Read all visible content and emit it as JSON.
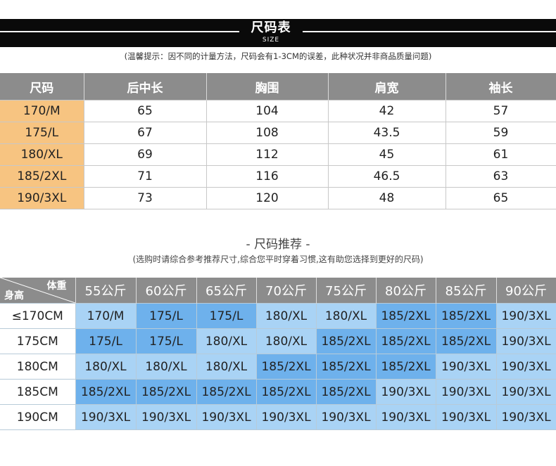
{
  "header": {
    "title": "尺码表",
    "subtitle": "SIZE",
    "notice": "(温馨提示：因不同的计量方法，尺码会有1-3CM的误差，此种状况并非商品质量问题)"
  },
  "size_table": {
    "headers": [
      "尺码",
      "后中长",
      "胸围",
      "肩宽",
      "袖长"
    ],
    "rows": [
      [
        "170/M",
        "65",
        "104",
        "42",
        "57"
      ],
      [
        "175/L",
        "67",
        "108",
        "43.5",
        "59"
      ],
      [
        "180/XL",
        "69",
        "112",
        "45",
        "61"
      ],
      [
        "185/2XL",
        "71",
        "116",
        "46.5",
        "63"
      ],
      [
        "190/3XL",
        "73",
        "120",
        "48",
        "65"
      ]
    ]
  },
  "recommendation": {
    "title": "- 尺码推荐 -",
    "note": "(选购时请综合参考推荐尺寸,综合您平时穿着习惯,这有助您选择到更好的尺码)",
    "corner_top": "体重",
    "corner_bottom": "身高",
    "weights": [
      "55公斤",
      "60公斤",
      "65公斤",
      "70公斤",
      "75公斤",
      "80公斤",
      "85公斤",
      "90公斤"
    ],
    "rows": [
      {
        "height": "≤170CM",
        "cells": [
          "170/M",
          "175/L",
          "175/L",
          "180/XL",
          "180/XL",
          "185/2XL",
          "185/2XL",
          "190/3XL"
        ],
        "shade": [
          "light",
          "dark",
          "dark",
          "light",
          "light",
          "dark",
          "dark",
          "light"
        ]
      },
      {
        "height": "175CM",
        "cells": [
          "175/L",
          "175/L",
          "180/XL",
          "180/XL",
          "185/2XL",
          "185/2XL",
          "185/2XL",
          "190/3XL"
        ],
        "shade": [
          "dark",
          "dark",
          "light",
          "light",
          "dark",
          "dark",
          "dark",
          "light"
        ]
      },
      {
        "height": "180CM",
        "cells": [
          "180/XL",
          "180/XL",
          "180/XL",
          "185/2XL",
          "185/2XL",
          "185/2XL",
          "190/3XL",
          "190/3XL"
        ],
        "shade": [
          "light",
          "light",
          "light",
          "dark",
          "dark",
          "dark",
          "light",
          "light"
        ]
      },
      {
        "height": "185CM",
        "cells": [
          "185/2XL",
          "185/2XL",
          "185/2XL",
          "185/2XL",
          "185/2XL",
          "190/3XL",
          "190/3XL",
          "190/3XL"
        ],
        "shade": [
          "dark",
          "dark",
          "dark",
          "dark",
          "dark",
          "light",
          "light",
          "light"
        ]
      },
      {
        "height": "190CM",
        "cells": [
          "190/3XL",
          "190/3XL",
          "190/3XL",
          "190/3XL",
          "190/3XL",
          "190/3XL",
          "190/3XL",
          "190/3XL"
        ],
        "shade": [
          "light",
          "light",
          "light",
          "light",
          "light",
          "light",
          "light",
          "light"
        ]
      }
    ]
  },
  "colors": {
    "header_gray": "#8c8c8c",
    "size_orange": "#f7c481",
    "light_blue": "#a9d3f5",
    "dark_blue": "#6eb1ec"
  }
}
